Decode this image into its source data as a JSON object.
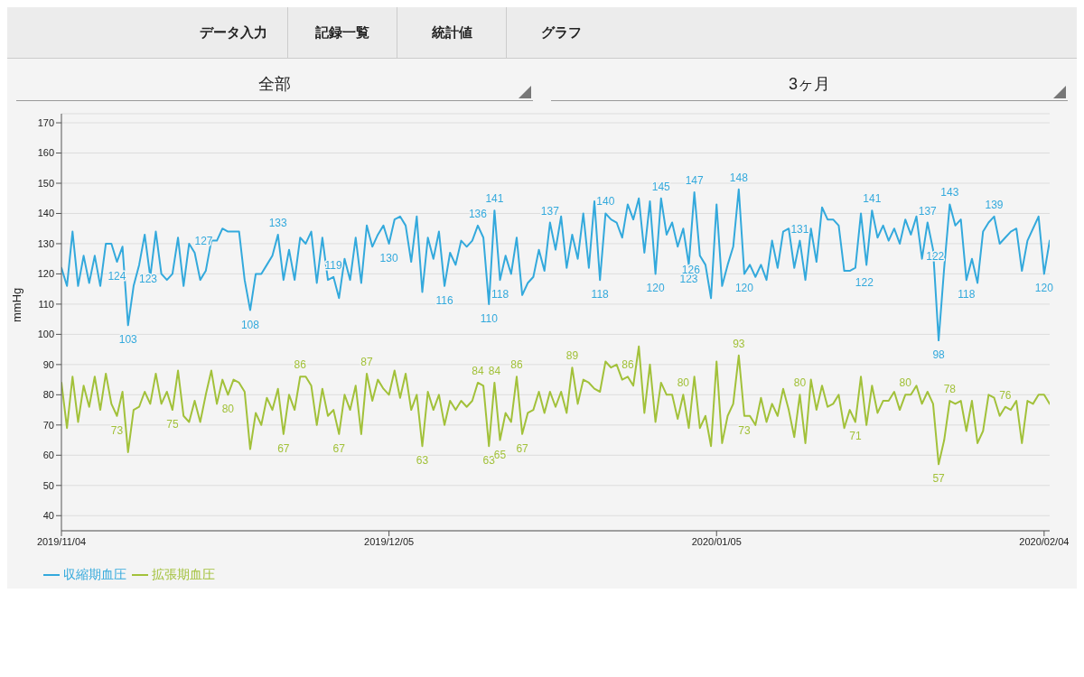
{
  "chart_data": {
    "type": "line",
    "annotations": [
      "データ入力",
      "記録一覧",
      "統計値",
      "グラフ",
      "全部",
      "3ヶ月"
    ],
    "ylabel": "mmHg",
    "categories": [
      "2019/11/04",
      null,
      null,
      null,
      null,
      null,
      null,
      null,
      null,
      null,
      null,
      null,
      null,
      null,
      null,
      null,
      null,
      null,
      null,
      null,
      null,
      null,
      null,
      null,
      null,
      null,
      null,
      null,
      null,
      null,
      null,
      null,
      null,
      null,
      null,
      null,
      null,
      null,
      null,
      null,
      null,
      null,
      null,
      null,
      null,
      null,
      null,
      null,
      null,
      null,
      null,
      null,
      null,
      null,
      null,
      null,
      null,
      null,
      null,
      "2019/12/05",
      null,
      null,
      null,
      null,
      null,
      null,
      null,
      null,
      null,
      null,
      null,
      null,
      null,
      null,
      null,
      null,
      null,
      null,
      null,
      null,
      null,
      null,
      null,
      null,
      null,
      null,
      null,
      null,
      null,
      null,
      null,
      null,
      null,
      null,
      null,
      null,
      null,
      null,
      null,
      null,
      null,
      null,
      null,
      null,
      null,
      null,
      null,
      null,
      null,
      null,
      null,
      null,
      null,
      null,
      null,
      null,
      null,
      null,
      "2020/01/05",
      null,
      null,
      null,
      null,
      null,
      null,
      null,
      null,
      null,
      null,
      null,
      null,
      null,
      null,
      null,
      null,
      null,
      null,
      null,
      null,
      null,
      null,
      null,
      null,
      null,
      null,
      null,
      null,
      null,
      null,
      null,
      null,
      null,
      null,
      null,
      null,
      null,
      null,
      null,
      null,
      null,
      null,
      null,
      null,
      null,
      null,
      null,
      null,
      null,
      null,
      null,
      null,
      null,
      null,
      null,
      null,
      null,
      null,
      "2020/02/04",
      null
    ],
    "series": [
      {
        "name": "収縮期血圧",
        "color": "#33a9dc",
        "values": [
          122,
          116,
          134,
          116,
          126,
          117,
          126,
          116,
          130,
          130,
          124,
          129,
          103,
          116,
          123,
          133,
          119,
          134,
          120,
          118,
          120,
          132,
          116,
          130,
          127,
          118,
          121,
          131,
          131,
          135,
          134,
          134,
          134,
          118,
          108,
          120,
          120,
          123,
          126,
          133,
          118,
          128,
          118,
          132,
          130,
          134,
          117,
          132,
          118,
          119,
          112,
          125,
          118,
          132,
          117,
          136,
          129,
          133,
          136,
          130,
          138,
          139,
          136,
          124,
          139,
          114,
          132,
          125,
          134,
          116,
          127,
          123,
          131,
          129,
          131,
          136,
          132,
          110,
          141,
          118,
          126,
          120,
          132,
          113,
          117,
          119,
          128,
          121,
          137,
          128,
          139,
          122,
          133,
          125,
          140,
          122,
          144,
          118,
          140,
          138,
          137,
          132,
          143,
          138,
          145,
          127,
          144,
          120,
          145,
          133,
          137,
          129,
          135,
          123,
          147,
          126,
          123,
          112,
          143,
          116,
          123,
          129,
          148,
          120,
          123,
          119,
          123,
          118,
          131,
          122,
          134,
          135,
          122,
          131,
          118,
          135,
          124,
          142,
          138,
          138,
          136,
          121,
          121,
          122,
          140,
          123,
          141,
          132,
          136,
          131,
          135,
          130,
          138,
          133,
          139,
          125,
          137,
          128,
          98,
          122,
          143,
          136,
          138,
          118,
          125,
          117,
          134,
          137,
          139,
          130,
          132,
          134,
          135,
          121,
          131,
          135,
          139,
          120,
          131
        ],
        "value_labels": [
          null,
          null,
          null,
          null,
          null,
          null,
          null,
          null,
          null,
          null,
          "124",
          null,
          "103",
          null,
          "123",
          null,
          null,
          null,
          null,
          null,
          null,
          null,
          null,
          null,
          "127",
          null,
          null,
          null,
          null,
          null,
          null,
          null,
          null,
          null,
          "108",
          null,
          null,
          null,
          null,
          "133",
          null,
          null,
          null,
          null,
          null,
          null,
          null,
          null,
          null,
          "119",
          null,
          null,
          null,
          null,
          null,
          null,
          null,
          null,
          null,
          "130",
          null,
          null,
          null,
          null,
          null,
          null,
          null,
          null,
          null,
          "116",
          null,
          null,
          null,
          null,
          null,
          "136",
          null,
          "110",
          "141",
          "118",
          null,
          null,
          null,
          null,
          null,
          null,
          null,
          null,
          "137",
          null,
          null,
          null,
          null,
          null,
          null,
          null,
          null,
          "118",
          "140",
          null,
          null,
          null,
          null,
          null,
          null,
          null,
          null,
          "120",
          "145",
          null,
          null,
          null,
          null,
          "123",
          "147",
          "126",
          null,
          null,
          null,
          null,
          null,
          null,
          "148",
          "120",
          null,
          null,
          null,
          null,
          null,
          null,
          null,
          null,
          null,
          "131",
          null,
          null,
          null,
          null,
          null,
          null,
          null,
          null,
          null,
          "122",
          null,
          null,
          "141",
          null,
          null,
          null,
          null,
          null,
          null,
          null,
          null,
          null,
          "137",
          null,
          "98",
          "122",
          "143",
          null,
          null,
          "118",
          null,
          null,
          null,
          null,
          "139",
          null,
          null,
          null,
          null,
          null,
          null,
          null,
          null,
          "120",
          null
        ]
      },
      {
        "name": "拡張期血圧",
        "color": "#a2c13a",
        "values": [
          84,
          69,
          86,
          71,
          83,
          76,
          86,
          75,
          87,
          77,
          73,
          81,
          61,
          75,
          76,
          81,
          77,
          87,
          77,
          81,
          75,
          88,
          73,
          71,
          78,
          71,
          80,
          88,
          77,
          85,
          80,
          85,
          84,
          81,
          62,
          74,
          70,
          79,
          75,
          82,
          67,
          80,
          75,
          86,
          86,
          83,
          70,
          82,
          73,
          75,
          67,
          80,
          75,
          83,
          67,
          87,
          78,
          85,
          82,
          80,
          88,
          79,
          87,
          75,
          80,
          63,
          81,
          75,
          80,
          70,
          78,
          75,
          78,
          76,
          78,
          84,
          83,
          63,
          84,
          65,
          74,
          71,
          86,
          67,
          74,
          75,
          81,
          74,
          81,
          76,
          81,
          74,
          89,
          77,
          85,
          84,
          82,
          81,
          91,
          89,
          90,
          85,
          86,
          83,
          96,
          74,
          90,
          71,
          84,
          80,
          80,
          72,
          80,
          69,
          86,
          69,
          73,
          63,
          91,
          64,
          73,
          77,
          93,
          73,
          73,
          70,
          79,
          71,
          77,
          73,
          82,
          75,
          66,
          80,
          64,
          85,
          75,
          83,
          76,
          77,
          80,
          69,
          75,
          71,
          86,
          70,
          83,
          74,
          78,
          78,
          81,
          75,
          80,
          80,
          83,
          77,
          81,
          77,
          57,
          65,
          78,
          77,
          78,
          68,
          78,
          64,
          68,
          80,
          79,
          73,
          76,
          75,
          78,
          64,
          78,
          77,
          80,
          80,
          77
        ],
        "value_labels": [
          null,
          null,
          null,
          null,
          null,
          null,
          null,
          null,
          null,
          null,
          "73",
          null,
          null,
          null,
          null,
          null,
          null,
          null,
          null,
          null,
          "75",
          null,
          null,
          null,
          null,
          null,
          null,
          null,
          null,
          null,
          "80",
          null,
          null,
          null,
          null,
          null,
          null,
          null,
          null,
          null,
          "67",
          null,
          null,
          "86",
          null,
          null,
          null,
          null,
          null,
          null,
          "67",
          null,
          null,
          null,
          null,
          "87",
          null,
          null,
          null,
          null,
          null,
          null,
          null,
          null,
          null,
          "63",
          null,
          null,
          null,
          null,
          null,
          null,
          null,
          null,
          null,
          "84",
          null,
          "63",
          "84",
          "65",
          null,
          null,
          "86",
          "67",
          null,
          null,
          null,
          null,
          null,
          null,
          null,
          null,
          "89",
          null,
          null,
          null,
          null,
          null,
          null,
          null,
          null,
          null,
          "86",
          null,
          null,
          null,
          null,
          null,
          null,
          null,
          null,
          null,
          "80",
          null,
          null,
          null,
          null,
          null,
          null,
          null,
          null,
          null,
          "93",
          "73",
          null,
          null,
          null,
          null,
          null,
          null,
          null,
          null,
          null,
          "80",
          null,
          null,
          null,
          null,
          null,
          null,
          null,
          null,
          null,
          "71",
          null,
          null,
          null,
          null,
          null,
          null,
          null,
          null,
          "80",
          null,
          null,
          null,
          null,
          null,
          "57",
          null,
          "78",
          null,
          null,
          null,
          null,
          null,
          null,
          null,
          null,
          null,
          "76",
          null,
          null,
          null,
          null,
          null,
          null,
          null,
          null
        ]
      }
    ],
    "ylim": [
      35,
      173
    ],
    "yticks": [
      40,
      50,
      60,
      70,
      80,
      90,
      100,
      110,
      120,
      130,
      140,
      150,
      160,
      170
    ],
    "grid": "y",
    "legend": "bottom left",
    "marker": "none",
    "line_style": "solid"
  }
}
